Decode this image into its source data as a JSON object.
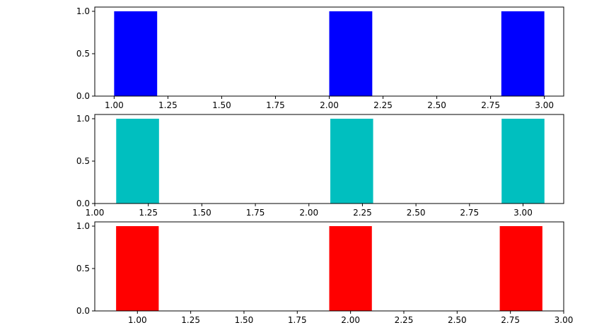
{
  "chart_data": [
    {
      "type": "bar",
      "color": "#0000ff",
      "bar_width": 0.2,
      "bars": [
        {
          "x": 1.1,
          "height": 1.0
        },
        {
          "x": 2.1,
          "height": 1.0
        },
        {
          "x": 2.9,
          "height": 1.0
        }
      ],
      "xlim": [
        0.91,
        3.09
      ],
      "ylim": [
        0.0,
        1.05
      ],
      "xticks": [
        1.0,
        1.25,
        1.5,
        1.75,
        2.0,
        2.25,
        2.5,
        2.75,
        3.0
      ],
      "xtick_labels": [
        "1.00",
        "1.25",
        "1.50",
        "1.75",
        "2.00",
        "2.25",
        "2.50",
        "2.75",
        "3.00"
      ],
      "yticks": [
        0.0,
        0.5,
        1.0
      ],
      "ytick_labels": [
        "0.0",
        "0.5",
        "1.0"
      ],
      "grid": false
    },
    {
      "type": "bar",
      "color": "#00bfbf",
      "bar_width": 0.2,
      "bars": [
        {
          "x": 1.2,
          "height": 1.0
        },
        {
          "x": 2.2,
          "height": 1.0
        },
        {
          "x": 3.0,
          "height": 1.0
        }
      ],
      "xlim": [
        1.0,
        3.19
      ],
      "ylim": [
        0.0,
        1.05
      ],
      "xticks": [
        1.0,
        1.25,
        1.5,
        1.75,
        2.0,
        2.25,
        2.5,
        2.75,
        3.0
      ],
      "xtick_labels": [
        "1.00",
        "1.25",
        "1.50",
        "1.75",
        "2.00",
        "2.25",
        "2.50",
        "2.75",
        "3.00"
      ],
      "yticks": [
        0.0,
        0.5,
        1.0
      ],
      "ytick_labels": [
        "0.0",
        "0.5",
        "1.0"
      ],
      "grid": false
    },
    {
      "type": "bar",
      "color": "#ff0000",
      "bar_width": 0.2,
      "bars": [
        {
          "x": 1.0,
          "height": 1.0
        },
        {
          "x": 2.0,
          "height": 1.0
        },
        {
          "x": 2.8,
          "height": 1.0
        }
      ],
      "xlim": [
        0.8,
        3.0
      ],
      "ylim": [
        0.0,
        1.05
      ],
      "xticks": [
        1.0,
        1.25,
        1.5,
        1.75,
        2.0,
        2.25,
        2.5,
        2.75,
        3.0
      ],
      "xtick_labels": [
        "1.00",
        "1.25",
        "1.50",
        "1.75",
        "2.00",
        "2.25",
        "2.50",
        "2.75",
        "3.00"
      ],
      "yticks": [
        0.0,
        0.5,
        1.0
      ],
      "ytick_labels": [
        "0.0",
        "0.5",
        "1.0"
      ],
      "grid": false
    }
  ]
}
